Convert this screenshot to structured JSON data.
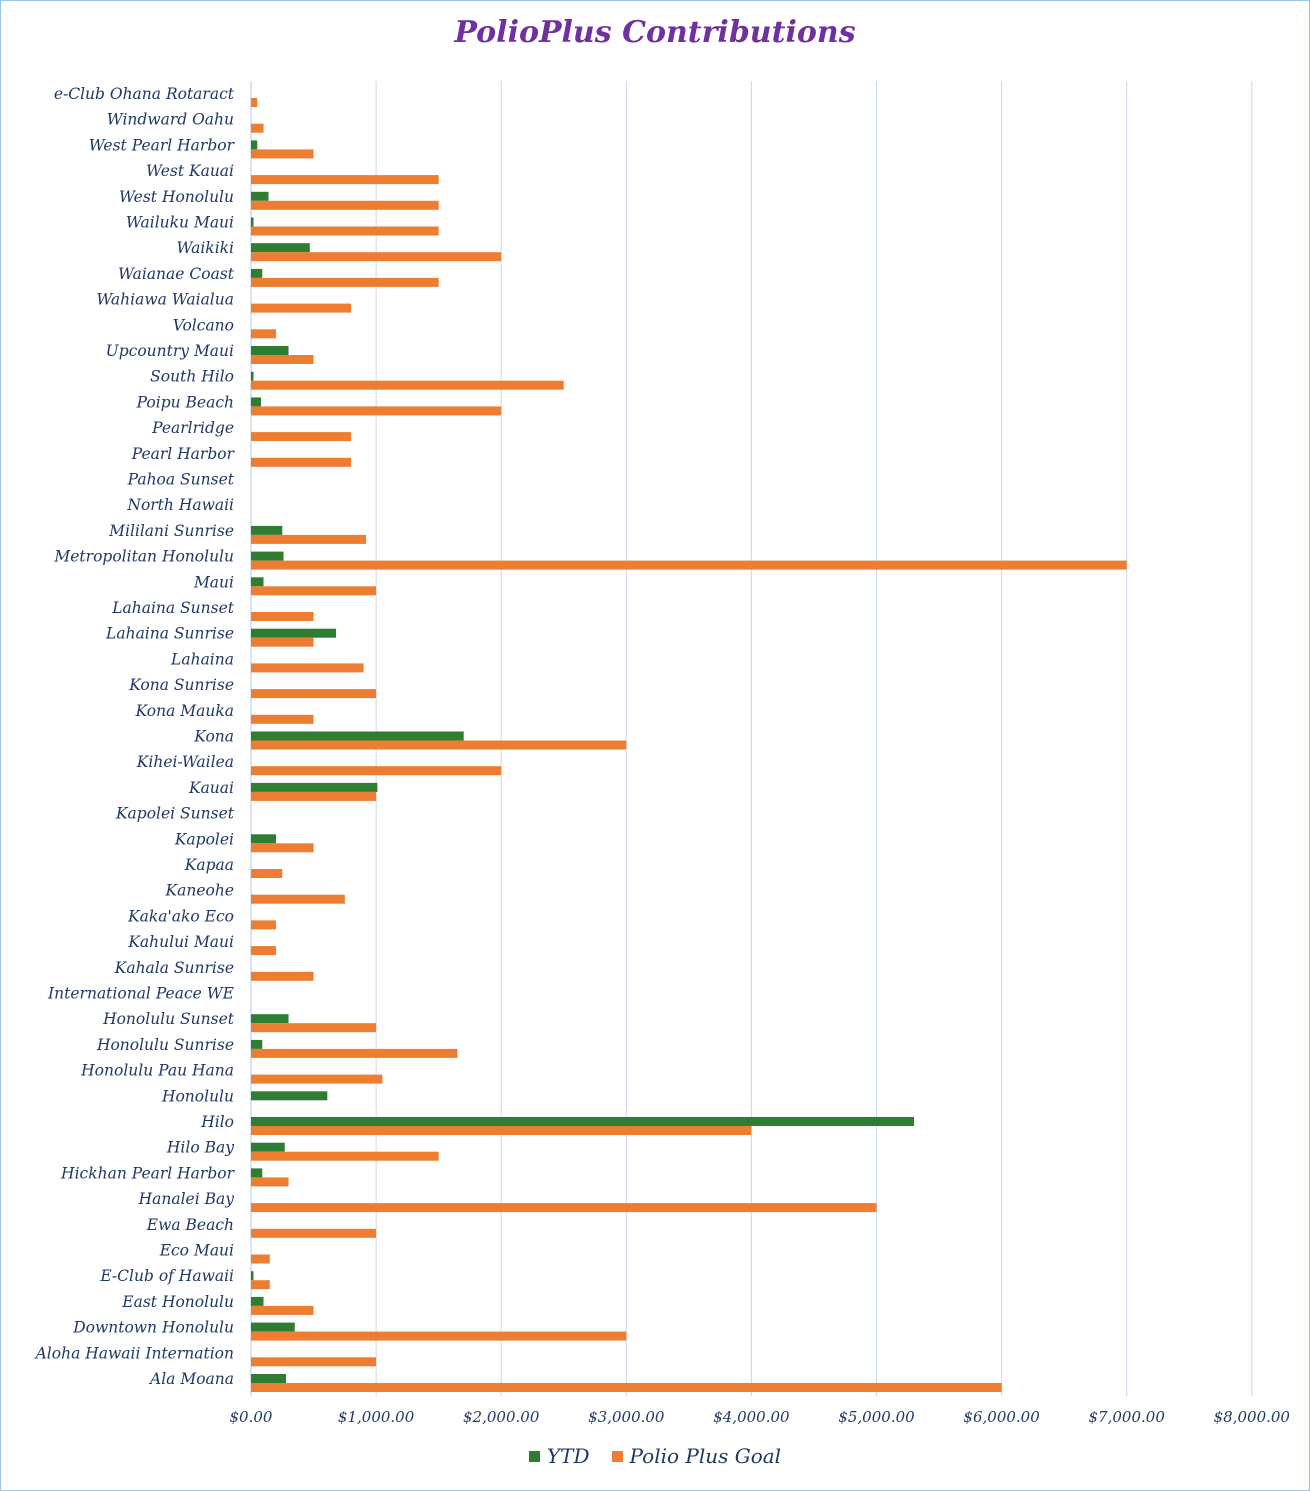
{
  "chart_data": {
    "type": "bar",
    "orientation": "horizontal",
    "title": "PolioPlus Contributions",
    "categories": [
      "e-Club Ohana Rotaract",
      "Windward Oahu",
      "West Pearl Harbor",
      "West Kauai",
      "West Honolulu",
      "Wailuku Maui",
      "Waikiki",
      "Waianae Coast",
      "Wahiawa Waialua",
      "Volcano",
      "Upcountry Maui",
      "South Hilo",
      "Poipu Beach",
      "Pearlridge",
      "Pearl Harbor",
      "Pahoa Sunset",
      "North Hawaii",
      "Mililani Sunrise",
      "Metropolitan Honolulu",
      "Maui",
      "Lahaina Sunset",
      "Lahaina Sunrise",
      "Lahaina",
      "Kona Sunrise",
      "Kona Mauka",
      "Kona",
      "Kihei-Wailea",
      "Kauai",
      "Kapolei Sunset",
      "Kapolei",
      "Kapaa",
      "Kaneohe",
      "Kaka'ako Eco",
      "Kahului Maui",
      "Kahala Sunrise",
      "International Peace WE",
      "Honolulu Sunset",
      "Honolulu Sunrise",
      "Honolulu Pau Hana",
      "Honolulu",
      "Hilo",
      "Hilo Bay",
      "Hickhan Pearl Harbor",
      "Hanalei Bay",
      "Ewa Beach",
      "Eco Maui",
      "E-Club of Hawaii",
      "East Honolulu",
      "Downtown Honolulu",
      "Aloha Hawaii Internation",
      "Ala Moana"
    ],
    "series": [
      {
        "name": "YTD",
        "color": "#2e7d32",
        "values": [
          0,
          0,
          50,
          0,
          140,
          20,
          470,
          90,
          0,
          0,
          300,
          20,
          80,
          0,
          0,
          0,
          0,
          250,
          260,
          100,
          0,
          680,
          0,
          0,
          0,
          1700,
          0,
          1010,
          0,
          200,
          0,
          0,
          0,
          0,
          0,
          0,
          300,
          90,
          0,
          610,
          5300,
          270,
          90,
          0,
          0,
          0,
          20,
          100,
          350,
          0,
          280
        ]
      },
      {
        "name": "Polio Plus Goal",
        "color": "#ed7d31",
        "values": [
          50,
          100,
          500,
          1500,
          1500,
          1500,
          2000,
          1500,
          800,
          200,
          500,
          2500,
          2000,
          800,
          800,
          0,
          0,
          920,
          7000,
          1000,
          500,
          500,
          900,
          1000,
          500,
          3000,
          2000,
          1000,
          0,
          500,
          250,
          750,
          200,
          200,
          500,
          0,
          1000,
          1650,
          1050,
          0,
          4000,
          1500,
          300,
          5000,
          1000,
          150,
          150,
          500,
          3000,
          1000,
          6000
        ]
      }
    ],
    "x_ticks": [
      "$0.00",
      "$1,000.00",
      "$2,000.00",
      "$3,000.00",
      "$4,000.00",
      "$5,000.00",
      "$6,000.00",
      "$7,000.00",
      "$8,000.00"
    ],
    "xlim": [
      0,
      8000
    ],
    "grid": true,
    "legend": "bottom"
  }
}
